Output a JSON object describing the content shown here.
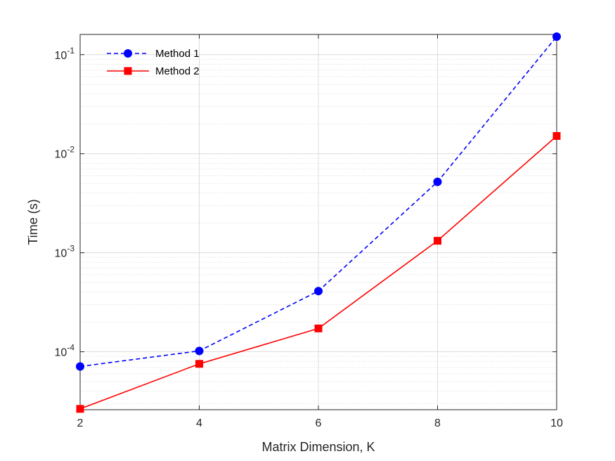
{
  "chart_data": {
    "type": "line",
    "title": "",
    "xlabel": "Matrix Dimension, K",
    "ylabel": "Time (s)",
    "xscale": "linear",
    "yscale": "log",
    "xlim": [
      2,
      10
    ],
    "ylim": [
      2.6e-05,
      0.16
    ],
    "grid": true,
    "legend_position": "top-left",
    "x": [
      2,
      4,
      6,
      8,
      10
    ],
    "x_tick_labels": [
      "2",
      "4",
      "6",
      "8",
      "10"
    ],
    "y_ticks": [
      {
        "value": 0.0001,
        "base": "10",
        "exp": "-4"
      },
      {
        "value": 0.001,
        "base": "10",
        "exp": "-3"
      },
      {
        "value": 0.01,
        "base": "10",
        "exp": "-2"
      },
      {
        "value": 0.1,
        "base": "10",
        "exp": "-1"
      }
    ],
    "series": [
      {
        "name": "Method 1",
        "values": [
          7.1e-05,
          0.000102,
          0.00041,
          0.0052,
          0.152
        ],
        "color": "#0000ff",
        "line_style": "dashed",
        "marker": "circle"
      },
      {
        "name": "Method 2",
        "values": [
          2.65e-05,
          7.55e-05,
          0.000172,
          0.00132,
          0.0151
        ],
        "color": "#ff0000",
        "line_style": "solid",
        "marker": "square"
      }
    ]
  }
}
